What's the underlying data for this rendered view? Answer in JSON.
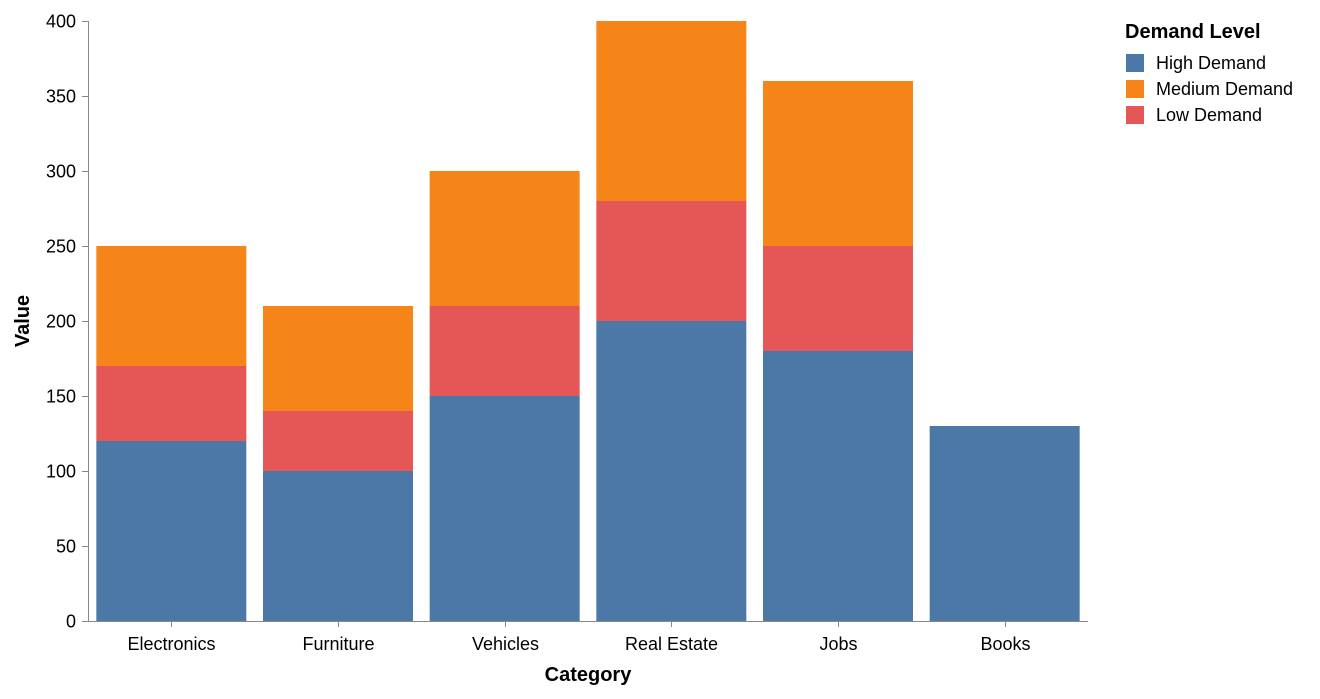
{
  "chart_data": {
    "type": "bar",
    "stacked": true,
    "categories": [
      "Electronics",
      "Furniture",
      "Vehicles",
      "Real Estate",
      "Jobs",
      "Books"
    ],
    "series": [
      {
        "name": "High Demand",
        "color": "#4c78a8",
        "values": [
          120,
          100,
          150,
          200,
          180,
          130
        ]
      },
      {
        "name": "Low Demand",
        "color": "#e45756",
        "values": [
          50,
          40,
          60,
          80,
          70,
          0
        ]
      },
      {
        "name": "Medium Demand",
        "color": "#f58518",
        "values": [
          80,
          70,
          90,
          120,
          110,
          0
        ]
      }
    ],
    "xlabel": "Category",
    "ylabel": "Value",
    "ylim": [
      0,
      400
    ],
    "yticks": [
      0,
      50,
      100,
      150,
      200,
      250,
      300,
      350,
      400
    ],
    "grid": false,
    "legend": {
      "title": "Demand Level",
      "placement": "top-right",
      "entries": [
        {
          "label": "High Demand",
          "color": "#4c78a8"
        },
        {
          "label": "Medium Demand",
          "color": "#f58518"
        },
        {
          "label": "Low Demand",
          "color": "#e45756"
        }
      ]
    },
    "axis_color": "#888888"
  }
}
